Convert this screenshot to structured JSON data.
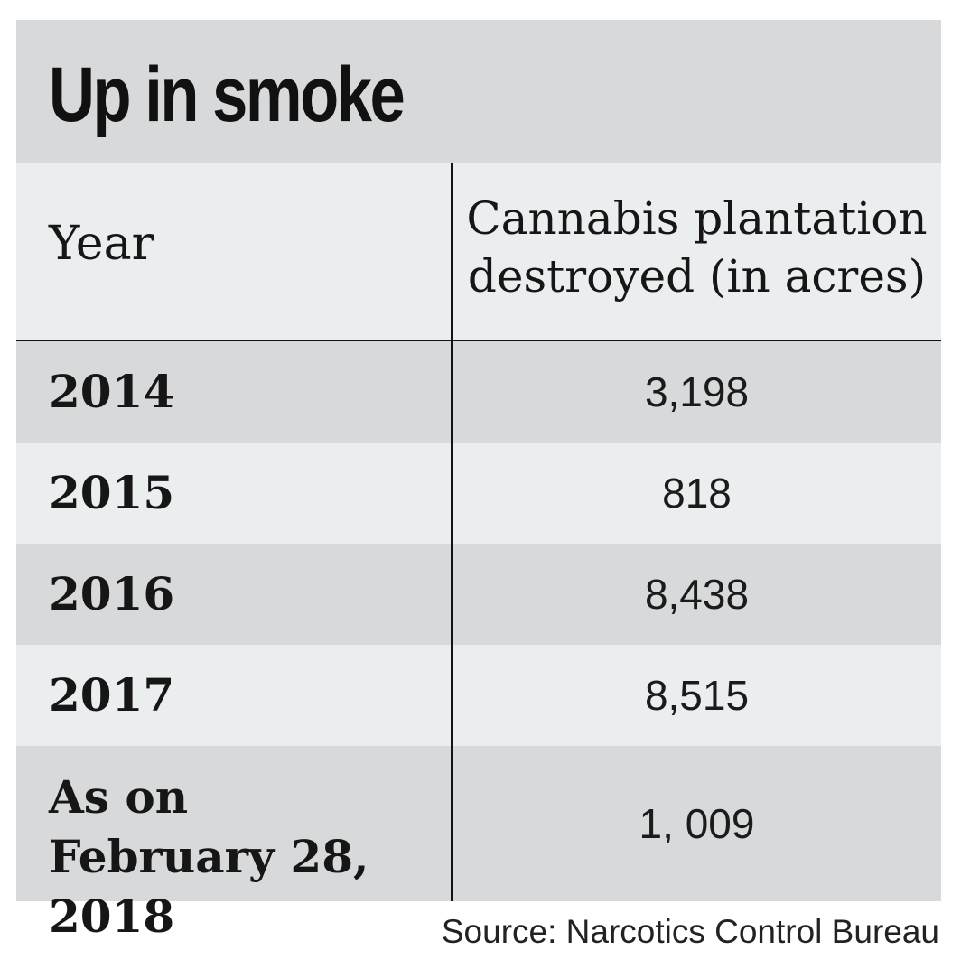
{
  "chart_data": {
    "type": "table",
    "title": "Up in smoke",
    "columns": [
      "Year",
      "Cannabis plantation destroyed (in acres)"
    ],
    "rows": [
      {
        "year": "2014",
        "value": "3,198"
      },
      {
        "year": "2015",
        "value": "818"
      },
      {
        "year": "2016",
        "value": "8,438"
      },
      {
        "year": "2017",
        "value": "8,515"
      },
      {
        "year": "As on February 28, 2018",
        "value": "1, 009"
      }
    ],
    "values": [
      3198,
      818,
      8438,
      8515,
      1009
    ],
    "source": "Source: Narcotics Control Bureau"
  },
  "colors": {
    "band_dark": "#d7d9da",
    "band_light": "#ebeeef",
    "rule": "#141414",
    "text": "#161616"
  }
}
